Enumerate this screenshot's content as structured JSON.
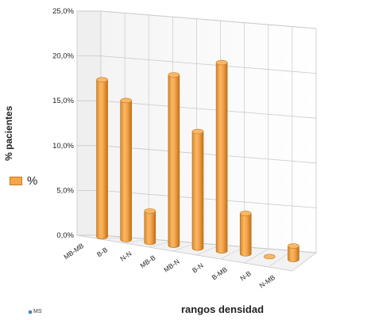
{
  "chart_data": {
    "type": "bar",
    "title": "",
    "ylabel": "% pacientes",
    "xlabel": "rangos densidad",
    "categories": [
      "MB-MB",
      "B-B",
      "N-N",
      "MB-B",
      "MB-N",
      "B-N",
      "B-MB",
      "N-B",
      "N-MB"
    ],
    "series": [
      {
        "name": "%",
        "values": [
          17.5,
          15.5,
          3.5,
          19.0,
          13.0,
          21.0,
          4.5,
          0.0,
          1.5
        ]
      }
    ],
    "ylim": [
      0,
      25
    ],
    "yticks": [
      "0,0%",
      "5,0%",
      "10,0%",
      "15,0%",
      "20,0%",
      "25,0%"
    ],
    "grid": true,
    "legend": "left",
    "bar_color": "#f5a54a"
  },
  "legend_text": "%",
  "corner_note": "MS"
}
